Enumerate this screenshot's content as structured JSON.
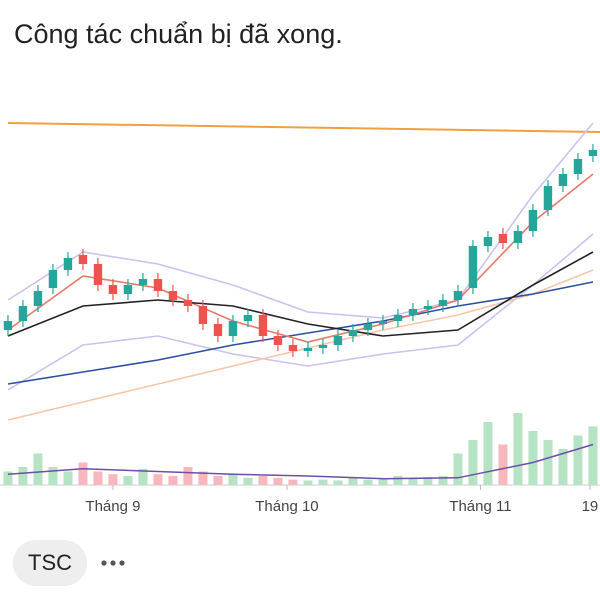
{
  "header": {
    "title": "Công tác chuẩn bị đã xong."
  },
  "chart_data": {
    "type": "candlestick",
    "open": [
      30,
      33,
      38,
      44,
      50,
      55,
      52,
      45,
      42,
      45,
      47,
      43,
      40,
      38,
      32,
      28,
      33,
      35,
      28,
      25,
      23,
      24,
      25,
      28,
      30,
      32,
      33,
      35,
      37,
      38,
      40,
      44,
      58,
      62,
      59,
      63,
      70,
      78,
      82,
      88
    ],
    "high": [
      35,
      40,
      45,
      52,
      56,
      57,
      54,
      47,
      47,
      49,
      49,
      45,
      42,
      40,
      34,
      35,
      37,
      37,
      30,
      27,
      26,
      27,
      30,
      32,
      34,
      35,
      37,
      39,
      40,
      42,
      45,
      60,
      63,
      64,
      65,
      72,
      80,
      84,
      89,
      92
    ],
    "low": [
      28,
      31,
      36,
      42,
      48,
      50,
      43,
      40,
      40,
      43,
      41,
      38,
      36,
      30,
      26,
      26,
      31,
      26,
      23,
      21,
      21,
      22,
      23,
      26,
      28,
      30,
      31,
      33,
      35,
      36,
      38,
      42,
      56,
      57,
      57,
      61,
      68,
      76,
      80,
      86
    ],
    "close": [
      33,
      38,
      43,
      50,
      54,
      52,
      45,
      42,
      45,
      47,
      43,
      40,
      38,
      32,
      28,
      33,
      35,
      28,
      25,
      23,
      24,
      25,
      28,
      30,
      32,
      33,
      35,
      37,
      38,
      40,
      43,
      58,
      61,
      59,
      63,
      70,
      78,
      82,
      87,
      90
    ],
    "volumes": [
      15,
      20,
      35,
      20,
      15,
      25,
      15,
      12,
      10,
      18,
      12,
      10,
      20,
      15,
      10,
      12,
      8,
      10,
      8,
      6,
      5,
      6,
      5,
      8,
      6,
      7,
      10,
      8,
      9,
      10,
      35,
      50,
      70,
      45,
      80,
      60,
      50,
      40,
      55,
      65
    ],
    "up_color": "#26a69a",
    "down_color": "#ef5350",
    "volume_up_color": "#b6e3c4",
    "volume_down_color": "#f6b8bd",
    "ylim": [
      0,
      105
    ],
    "volume_ylim": [
      0,
      100
    ],
    "xlim": [
      -0.53,
      39.47
    ],
    "lines": [
      {
        "color": "#f0a040",
        "x": [
          0,
          39.47
        ],
        "values": [
          99,
          96
        ]
      },
      {
        "color": "#c8c4f0",
        "x": [
          0,
          5,
          10,
          15,
          20,
          25,
          30,
          35,
          39
        ],
        "values": [
          40,
          56,
          52,
          45,
          36,
          34,
          40,
          75,
          99
        ]
      },
      {
        "color": "#c8c4f0",
        "x": [
          0,
          5,
          10,
          15,
          20,
          25,
          30,
          35,
          39
        ],
        "values": [
          10,
          25,
          28,
          22,
          18,
          22,
          25,
          45,
          62
        ]
      },
      {
        "color": "#f7c6a8",
        "x": [
          0,
          5,
          10,
          15,
          20,
          25,
          30,
          35,
          39
        ],
        "values": [
          0,
          6,
          12,
          18,
          24,
          30,
          35,
          42,
          50
        ]
      },
      {
        "color": "#2c4fa3",
        "x": [
          0,
          5,
          10,
          15,
          20,
          25,
          30,
          35,
          39
        ],
        "values": [
          12,
          16,
          20,
          25,
          29,
          33,
          38,
          42,
          46
        ]
      },
      {
        "color": "#e8796b",
        "x": [
          0,
          5,
          10,
          15,
          20,
          25,
          30,
          35,
          39
        ],
        "values": [
          30,
          48,
          44,
          33,
          26,
          32,
          40,
          66,
          82
        ]
      },
      {
        "color": "#222222",
        "x": [
          0,
          5,
          10,
          15,
          20,
          25,
          30,
          35,
          39
        ],
        "values": [
          28,
          38,
          40,
          38,
          32,
          28,
          30,
          45,
          56
        ]
      }
    ],
    "volume_line": {
      "color": "#6b4fa8",
      "x": [
        0,
        5,
        10,
        15,
        20,
        25,
        30,
        35,
        39
      ],
      "values": [
        12,
        18,
        15,
        12,
        10,
        7,
        8,
        25,
        45
      ]
    },
    "xticks": [
      {
        "value": 7,
        "label": "Tháng 9"
      },
      {
        "value": 18.6,
        "label": "Tháng 10"
      },
      {
        "value": 31.5,
        "label": "Tháng 11"
      },
      {
        "value": 38.8,
        "label": "19"
      }
    ]
  },
  "tag": {
    "label": "TSC"
  }
}
